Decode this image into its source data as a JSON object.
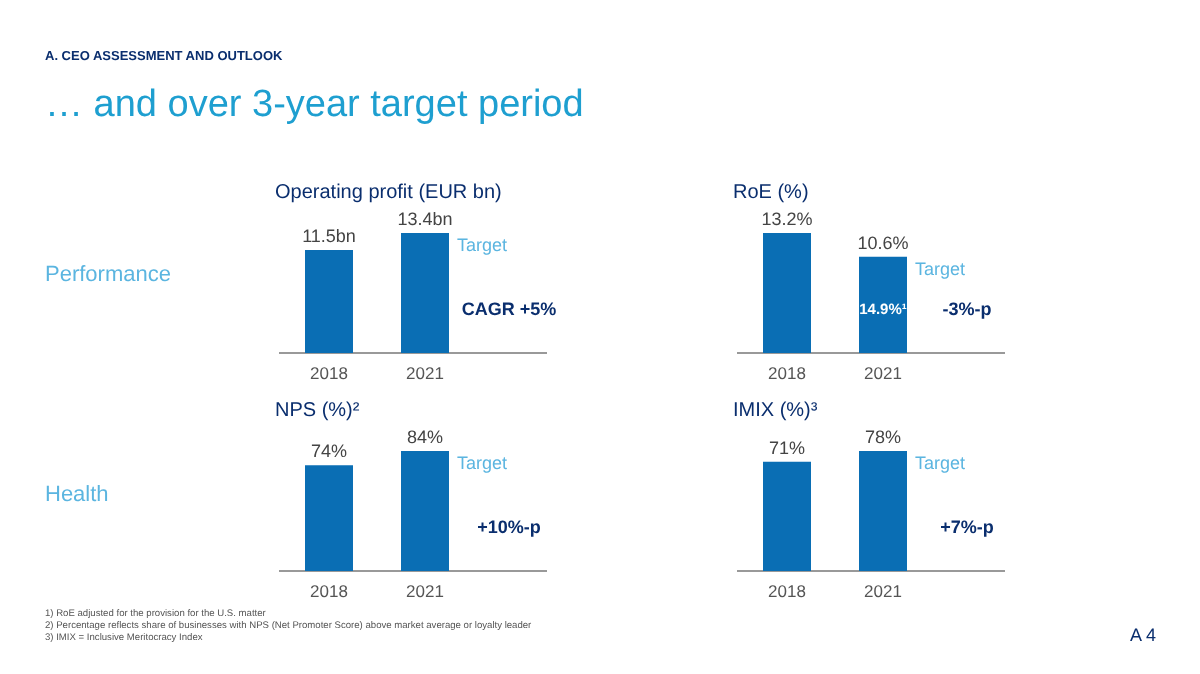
{
  "chart_data": [
    {
      "type": "other",
      "subtitle": "A. CEO ASSESSMENT AND OUTLOOK",
      "title": "… and over 3-year target period",
      "annotations": [
        "Performance",
        "Health",
        "1)  RoE adjusted for the provision for the U.S. matter",
        "2)  Percentage reflects share of businesses with NPS (Net Promoter Score) above market average or loyalty leader",
        "3)  IMIX = Inclusive Meritocracy Index",
        "A 4"
      ]
    },
    {
      "type": "bar",
      "title": "Operating profit (EUR bn)",
      "categories": [
        "2018",
        "2021"
      ],
      "values": [
        11.5,
        13.4
      ],
      "value_labels": [
        "11.5bn",
        "13.4bn"
      ],
      "color": "#0a6eb4",
      "annotations": [
        {
          "text": "Target",
          "x": "2021",
          "y": 13.4
        },
        "CAGR +5%"
      ]
    },
    {
      "type": "bar",
      "title": "RoE (%)",
      "categories": [
        "2018",
        "2021"
      ],
      "values": [
        13.2,
        10.6
      ],
      "value_labels": [
        "13.2%",
        "10.6%"
      ],
      "color": "#0a6eb4",
      "annotations": [
        {
          "text": "Target",
          "x": "2021",
          "y": 10.6
        },
        "14.9%¹",
        "-3%-p"
      ]
    },
    {
      "type": "bar",
      "title": "NPS (%)²",
      "categories": [
        "2018",
        "2021"
      ],
      "values": [
        74,
        84
      ],
      "value_labels": [
        "74%",
        "84%"
      ],
      "color": "#0a6eb4",
      "annotations": [
        {
          "text": "Target",
          "x": "2021",
          "y": 84
        },
        "+10%-p"
      ]
    },
    {
      "type": "bar",
      "title": "IMIX (%)³",
      "categories": [
        "2018",
        "2021"
      ],
      "values": [
        71,
        78
      ],
      "value_labels": [
        "71%",
        "78%"
      ],
      "color": "#0a6eb4",
      "annotations": [
        {
          "text": "Target",
          "x": "2021",
          "y": 78
        },
        "+7%-p"
      ]
    }
  ]
}
